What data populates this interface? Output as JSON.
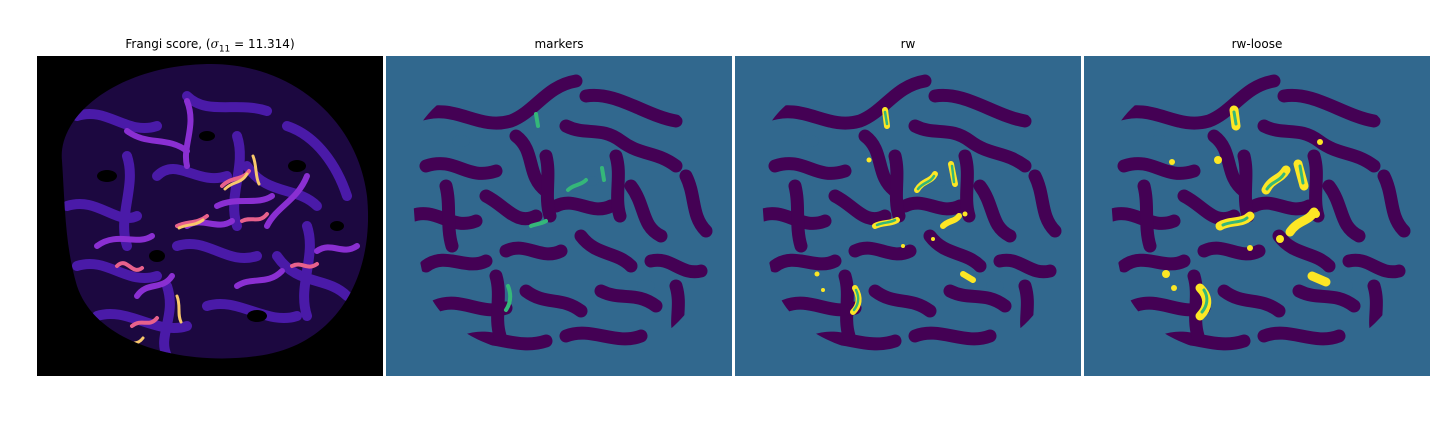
{
  "figure": {
    "panels": [
      {
        "id": "frangi",
        "title_prefix": "Frangi score, (",
        "title_math": "σ",
        "title_sub": "11",
        "title_suffix": " = 11.314)"
      },
      {
        "id": "markers",
        "title": "markers"
      },
      {
        "id": "rw",
        "title": "rw"
      },
      {
        "id": "rw_loose",
        "title": "rw-loose"
      }
    ]
  },
  "colors": {
    "frangi_bg": "#000000",
    "frangi_low": "#2c0b6b",
    "frangi_mid": "#7b2bd6",
    "frangi_high": "#e8618c",
    "frangi_peak": "#f9c86b",
    "label_background": "#31688e",
    "label_foreground": "#440154",
    "label_marker": "#35b779",
    "label_vessel": "#fde725"
  }
}
